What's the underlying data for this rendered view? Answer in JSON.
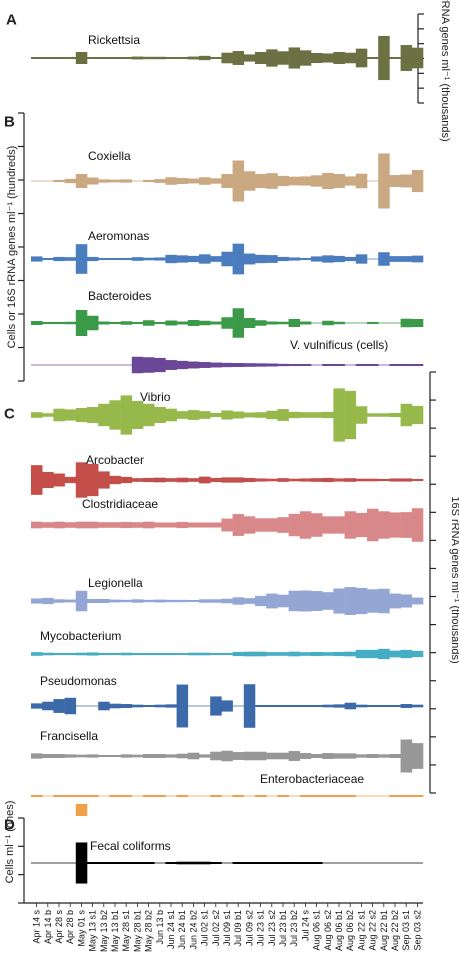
{
  "chart_data": {
    "type": "bar",
    "subtype": "symmetric-kite",
    "samples": [
      "Apr 14 s",
      "Apr 14 b",
      "Apr 28 s",
      "Apr 28 b",
      "May 01 s",
      "May 13 s1",
      "May 13 b2",
      "May 13 b1",
      "May 28 s1",
      "May 28 b1",
      "May 28 b2",
      "Jun 13 b",
      "Jun 24 s1",
      "Jun 24 b1",
      "Jun 24 b2",
      "Jul 02 s1",
      "Jul 02 s2",
      "Jul 09 s1",
      "Jul 09 b1",
      "Jul 09 s2",
      "Jul 23 s1",
      "Jul 23 s2",
      "Jul 23 b1",
      "Jul 23 b2",
      "Jul 24 s",
      "Aug 06 s1",
      "Aug 06 s2",
      "Aug 06 b1",
      "Aug 06 b2",
      "Aug 22 s1",
      "Aug 22 s2",
      "Aug 22 b1",
      "Aug 22 b2",
      "Sep 03 s1",
      "Sep 03 s2"
    ],
    "panels": [
      {
        "label": "A",
        "axis_label": "16S rRNA genes ml⁻¹ (thousands)",
        "axis_side": "right"
      },
      {
        "label": "B",
        "axis_label": "Cells or 16S rRNA genes ml⁻¹ (hundreds)",
        "axis_side": "left"
      },
      {
        "label": "C",
        "axis_label": "16S rRNA genes ml⁻¹ (thousands)",
        "axis_side": "right"
      },
      {
        "label": "D",
        "axis_label": "Cells ml⁻¹ (ones)",
        "axis_side": "left"
      }
    ],
    "series": [
      {
        "name": "Rickettsia",
        "panel": "A",
        "color": "#6b7143",
        "values": [
          0.1,
          0.1,
          0.3,
          0.1,
          2.5,
          0.2,
          0.2,
          0.3,
          0.4,
          0.6,
          0.5,
          0.5,
          0.3,
          0.2,
          0.6,
          0.9,
          0.3,
          2.2,
          2.9,
          1.5,
          2.5,
          3.6,
          2.8,
          4.4,
          3.2,
          2.1,
          1.9,
          2.5,
          2.2,
          3.9,
          0.4,
          9.2,
          0.3,
          5.4,
          4.3
        ]
      },
      {
        "name": "Coxiella",
        "panel": "B",
        "color": "#c9a882",
        "values": [
          0,
          0,
          0.4,
          0.8,
          2.6,
          1.3,
          0.6,
          0.5,
          0.6,
          0,
          0.4,
          0.7,
          1.4,
          1.1,
          0.9,
          1.4,
          1.0,
          2.6,
          7.6,
          3.6,
          2.6,
          2.9,
          1.9,
          1.6,
          1.7,
          2.1,
          3.0,
          2.6,
          1.7,
          2.7,
          0,
          10.2,
          2.2,
          2.4,
          4.1
        ]
      },
      {
        "name": "Aeromonas",
        "panel": "B",
        "color": "#4a7cbe",
        "values": [
          1.0,
          0.2,
          0.8,
          0.7,
          5.7,
          0.8,
          0.4,
          0.3,
          0.4,
          0.7,
          0.5,
          0.6,
          1.6,
          1.4,
          1.2,
          1.8,
          1.1,
          2.8,
          5.9,
          2.1,
          1.6,
          1.5,
          0.8,
          0.6,
          0.4,
          1.0,
          1.4,
          1.2,
          0.8,
          1.8,
          0,
          2.6,
          1.1,
          1.1,
          1.3
        ]
      },
      {
        "name": "Bacteroides",
        "panel": "B",
        "color": "#3a9a48",
        "values": [
          0.8,
          0.2,
          0.1,
          0.5,
          5.2,
          2.9,
          0.6,
          0.4,
          0.7,
          0.3,
          1.1,
          0.4,
          1.0,
          0.6,
          1.2,
          0.9,
          0.6,
          2.3,
          5.9,
          2.0,
          1.1,
          0.6,
          0.5,
          1.6,
          0.6,
          0,
          0.9,
          0.5,
          0,
          0,
          0.4,
          0,
          0,
          1.7,
          1.6
        ]
      },
      {
        "name": "V. vulnificus (cells)",
        "panel": "B",
        "color": "#6b4897",
        "values": [
          0,
          0,
          0,
          0,
          0,
          0,
          0,
          0,
          0,
          5.0,
          4.7,
          4.3,
          3.0,
          2.5,
          2.1,
          1.8,
          1.5,
          1.3,
          1.2,
          1.1,
          1.0,
          0.9,
          0.7,
          0.5,
          0.3,
          0,
          0.5,
          0.5,
          0,
          0.2,
          0.2,
          0,
          0.2,
          0.3,
          0.2
        ]
      },
      {
        "name": "Vibrio",
        "panel": "C",
        "color": "#97b94b",
        "values": [
          0.8,
          0.5,
          1.8,
          1.6,
          2.0,
          2.3,
          3.2,
          4.2,
          5.6,
          4.0,
          3.2,
          2.3,
          1.8,
          1.1,
          1.4,
          1.1,
          0.6,
          1.3,
          1.0,
          0.7,
          0.8,
          1.2,
          1.7,
          0.9,
          0.8,
          0.8,
          0.9,
          7.6,
          6.9,
          2.5,
          0.5,
          0.5,
          0.6,
          3.2,
          2.6
        ]
      },
      {
        "name": "Arcobacter",
        "panel": "C",
        "color": "#c44e4a",
        "values": [
          5.7,
          3.1,
          2.5,
          1.2,
          6.8,
          6.2,
          3.3,
          1.6,
          1.2,
          0.7,
          0.8,
          0.9,
          0.7,
          0.9,
          0.7,
          1.3,
          0.8,
          1.0,
          1.0,
          0.8,
          0.6,
          0.5,
          0.7,
          0.5,
          0.6,
          0.7,
          0.8,
          0.6,
          0.7,
          0.5,
          0.5,
          0.4,
          0.6,
          0.6,
          0.4
        ]
      },
      {
        "name": "Clostridiaceae",
        "panel": "C",
        "color": "#d9888a",
        "values": [
          1.2,
          1.0,
          1.2,
          1.0,
          1.2,
          1.2,
          1.0,
          1.0,
          1.1,
          1.0,
          1.2,
          0.9,
          0.9,
          1.1,
          0.9,
          0.9,
          0.9,
          2.3,
          3.9,
          3.1,
          2.4,
          2.4,
          2.8,
          4.0,
          4.9,
          4.2,
          3.1,
          3.1,
          4.9,
          4.3,
          5.8,
          4.9,
          4.5,
          4.6,
          6.0
        ]
      },
      {
        "name": "Legionella",
        "panel": "C",
        "color": "#94a7d4",
        "values": [
          0.9,
          1.1,
          0.6,
          0.5,
          3.6,
          0.7,
          0.7,
          0.5,
          0.4,
          0.6,
          0.4,
          0.5,
          0.4,
          0.4,
          0.3,
          0.6,
          0.6,
          0.8,
          1.3,
          1.0,
          1.8,
          2.6,
          2.2,
          3.6,
          3.7,
          3.5,
          3.1,
          4.4,
          4.9,
          4.6,
          4.1,
          4.3,
          2.6,
          2.3,
          1.2
        ]
      },
      {
        "name": "Mycobacterium",
        "panel": "C",
        "color": "#45adc4",
        "values": [
          0.7,
          0.5,
          0.4,
          0.4,
          0.5,
          0.6,
          0.4,
          0.4,
          0.5,
          0.4,
          0.3,
          0.3,
          0.3,
          0.3,
          0.5,
          0.5,
          0.3,
          0.4,
          0.8,
          0.9,
          0.9,
          0.7,
          0.7,
          0.9,
          0.7,
          0.8,
          0.7,
          0.8,
          0.9,
          1.6,
          1.6,
          2.0,
          1.3,
          1.6,
          1.2
        ]
      },
      {
        "name": "Pseudomonas",
        "panel": "C",
        "color": "#3c6aa8",
        "values": [
          0.8,
          1.3,
          2.1,
          2.5,
          0,
          0,
          1.3,
          0.7,
          0.6,
          0.4,
          0.3,
          0.4,
          0.5,
          6.5,
          0,
          0,
          2.9,
          1.7,
          0,
          6.6,
          0.1,
          0.1,
          0.2,
          0.3,
          0.3,
          0.2,
          0.4,
          0.5,
          1.0,
          0.4,
          0.3,
          0.2,
          0.3,
          0.6,
          0.4
        ]
      },
      {
        "name": "Francisella",
        "panel": "C",
        "color": "#979797",
        "values": [
          0.8,
          0.6,
          0.6,
          0.5,
          0.4,
          0.5,
          0.3,
          0.3,
          0.5,
          0.4,
          0.6,
          0.6,
          0.5,
          0.7,
          1.0,
          0.5,
          1.3,
          1.6,
          1.2,
          1.3,
          1.3,
          1.0,
          1.0,
          1.5,
          0.9,
          0.6,
          0.9,
          0.8,
          0.8,
          0.5,
          0.6,
          0.5,
          0.6,
          5.0,
          3.9
        ]
      },
      {
        "name": "Enterobacteriaceae",
        "panel": "C",
        "color": "#f0a04b",
        "values": [
          0.1,
          0,
          0.2,
          0.1,
          0.2,
          0.2,
          0,
          0.1,
          0.1,
          0,
          0.1,
          0.1,
          0,
          0.1,
          0,
          0,
          0.1,
          0,
          0.1,
          0,
          0.1,
          0,
          0.1,
          0,
          0.1,
          0.1,
          0.2,
          0.2,
          0.1,
          0,
          0,
          0,
          0.1,
          0.1,
          0.1
        ]
      },
      {
        "name": "Fecal coliforms",
        "panel": "D",
        "color": "#000000",
        "values": [
          0,
          0,
          0,
          0,
          7.9,
          0.3,
          0.3,
          0.3,
          0.3,
          0.3,
          0.2,
          0,
          0.3,
          0.5,
          0.5,
          0.5,
          0.2,
          0,
          0.2,
          0.2,
          0.1,
          0.1,
          0.2,
          0.2,
          0.2,
          0.2,
          0,
          0,
          0,
          0,
          0,
          0,
          0,
          0,
          0
        ]
      }
    ]
  }
}
